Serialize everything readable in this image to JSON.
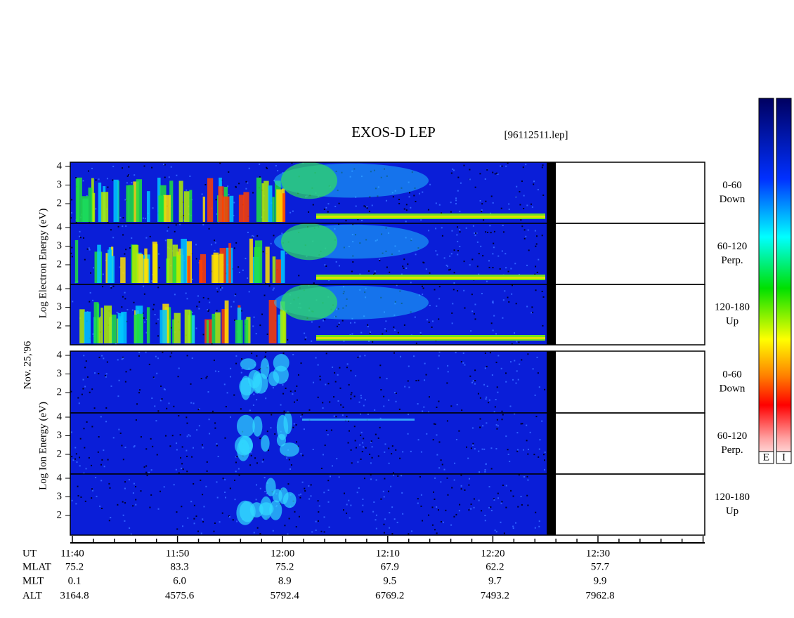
{
  "header": {
    "title": "EXOS-D LEP",
    "file": "[96112511.lep]"
  },
  "left_labels": {
    "electron": "Log Electron Energy (eV)",
    "date": "Nov. 25,'96",
    "ion": "Log Ion Energy (eV)"
  },
  "energy_ticks": [
    "4",
    "3",
    "2"
  ],
  "pitch_angles": [
    {
      "range": "0-60",
      "direction": "Down"
    },
    {
      "range": "60-120",
      "direction": "Perp."
    },
    {
      "range": "120-180",
      "direction": "Up"
    }
  ],
  "colorbars": [
    "E",
    "I"
  ],
  "time_axis": {
    "row_labels": [
      "UT",
      "MLAT",
      "MLT",
      "ALT"
    ],
    "columns": [
      [
        "11:40",
        "75.2",
        "0.1",
        "3164.8"
      ],
      [
        "11:50",
        "83.3",
        "6.0",
        "4575.6"
      ],
      [
        "12:00",
        "75.2",
        "8.9",
        "5792.4"
      ],
      [
        "12:10",
        "67.9",
        "9.5",
        "6769.2"
      ],
      [
        "12:20",
        "62.2",
        "9.7",
        "7493.2"
      ],
      [
        "12:30",
        "57.7",
        "9.9",
        "7962.8"
      ]
    ]
  }
}
